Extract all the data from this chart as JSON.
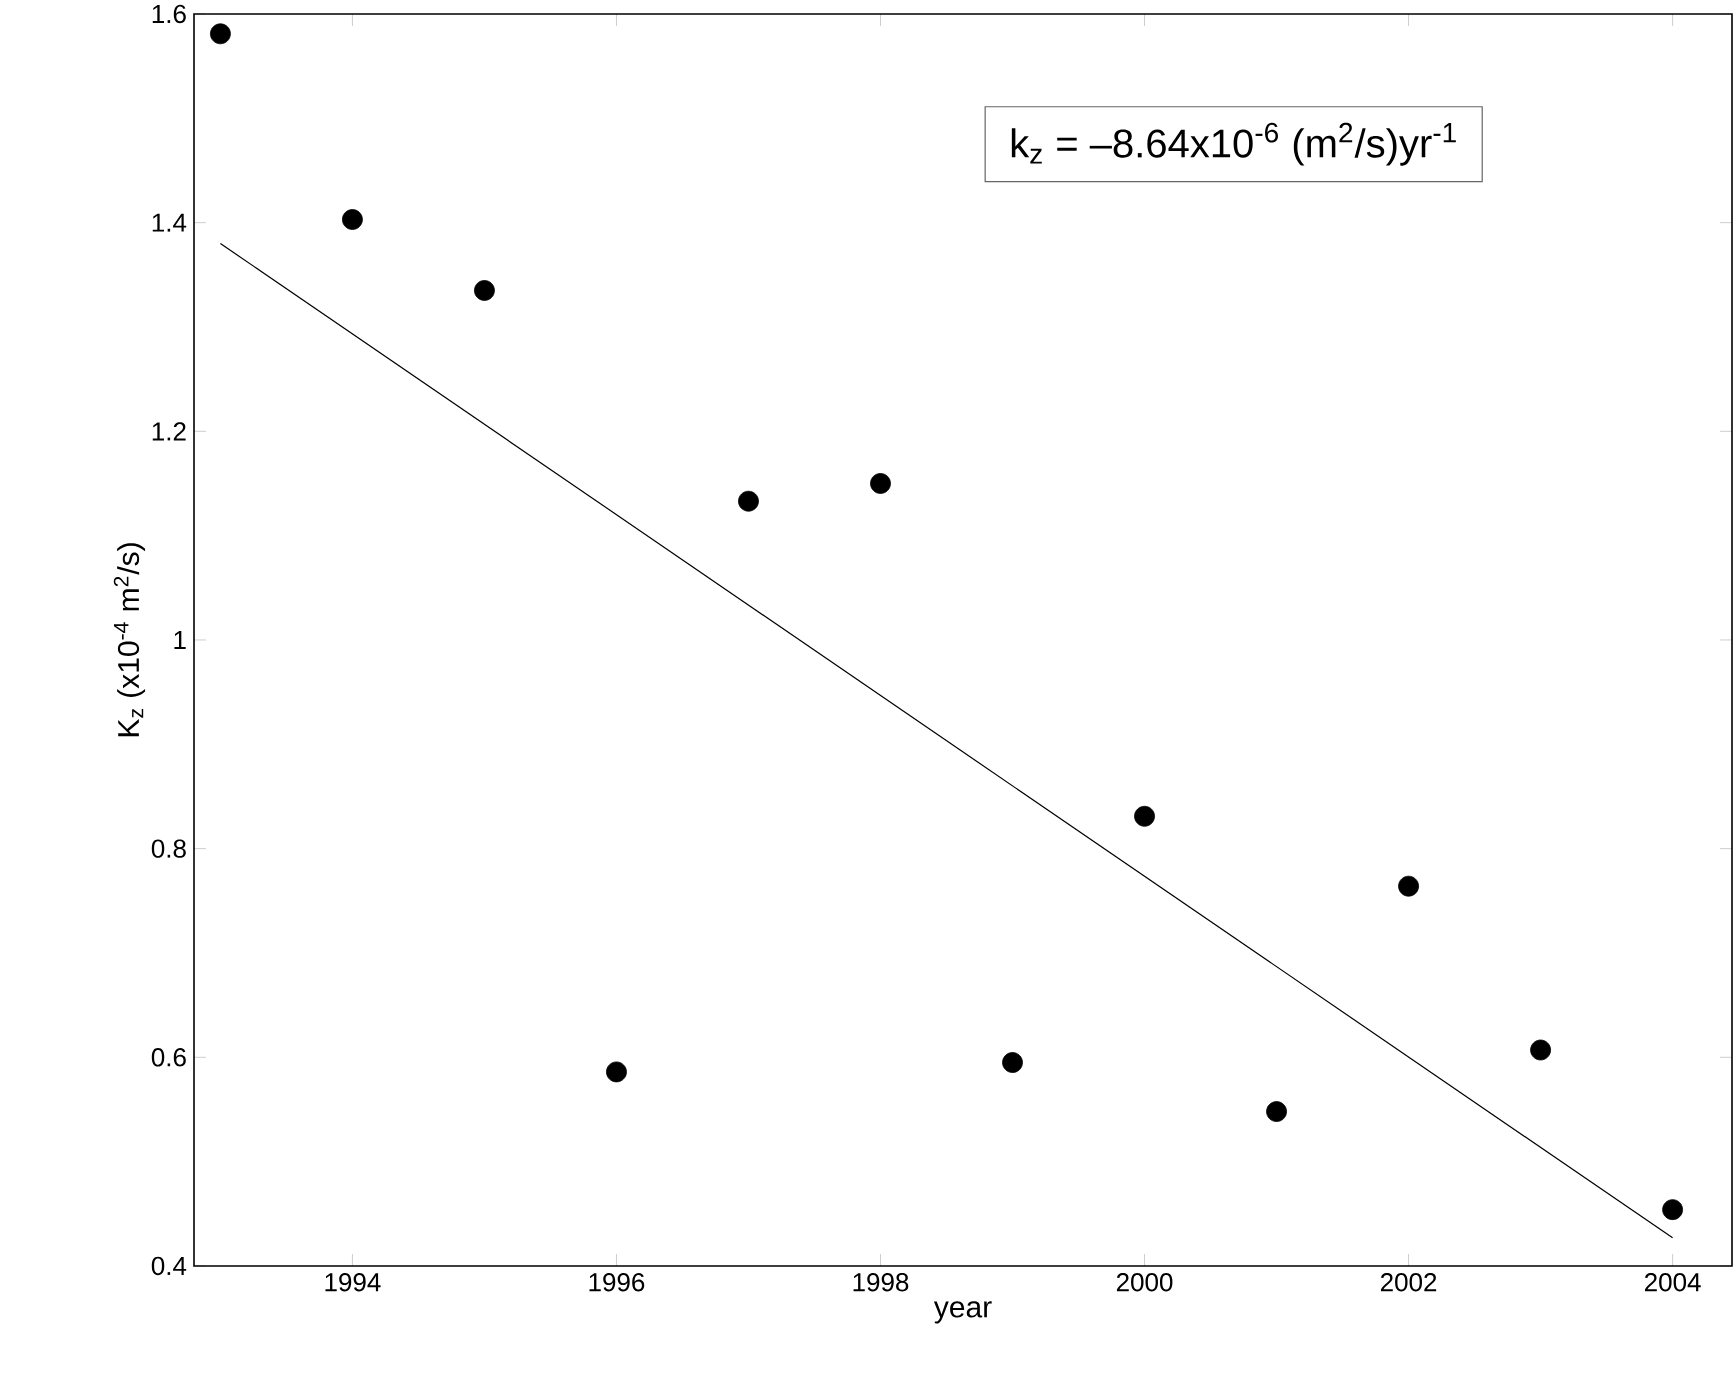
{
  "chart_data": {
    "type": "scatter",
    "xlabel": "year",
    "ylabel": "K$_{z}$ (x10$^{-4}$ m$^{2}$/s)",
    "x": [
      1993,
      1994,
      1995,
      1996,
      1997,
      1998,
      1999,
      2000,
      2001,
      2002,
      2003,
      2004
    ],
    "series": [
      {
        "color": "#000000",
        "marker": "circle",
        "values": [
          1.581,
          1.403,
          1.335,
          0.586,
          1.133,
          1.15,
          0.595,
          0.831,
          0.548,
          0.764,
          0.607,
          0.454
        ]
      },
      {
        "type": "line",
        "color": "#000000",
        "marker": "none",
        "line_style": "solid",
        "x": [
          1993,
          2004
        ],
        "values": [
          1.38,
          0.427
        ]
      }
    ],
    "xlim": [
      1992.8,
      2004.45
    ],
    "ylim": [
      0.4,
      1.6
    ],
    "xticks": [
      1994,
      1996,
      1998,
      2000,
      2002,
      2004
    ],
    "yticks": [
      0.4,
      0.6,
      0.8,
      1,
      1.2,
      1.4,
      1.6
    ],
    "grid": false,
    "annotations": [
      "k$_{z}$ = –8.64x10$^{-6}$ (m$^{2}$/s)yr$^{-1}$"
    ]
  }
}
